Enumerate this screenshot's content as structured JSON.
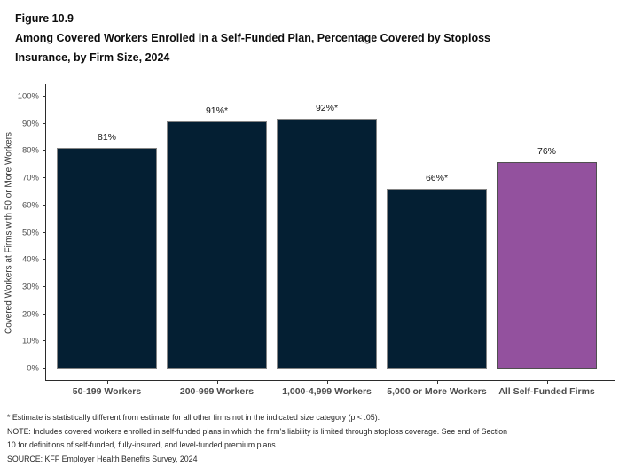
{
  "figure": {
    "label": "Figure 10.9",
    "title_lines": [
      "Among Covered Workers Enrolled in a Self-Funded Plan, Percentage Covered by Stoploss",
      "Insurance, by Firm Size, 2024"
    ]
  },
  "chart_data": {
    "type": "bar",
    "categories": [
      "50-199 Workers",
      "200-999 Workers",
      "1,000-4,999 Workers",
      "5,000 or More Workers",
      "All Self-Funded Firms"
    ],
    "values": [
      81,
      91,
      92,
      66,
      76
    ],
    "value_labels": [
      "81%",
      "91%*",
      "92%*",
      "66%*",
      "76%"
    ],
    "title": "Among Covered Workers Enrolled in a Self-Funded Plan, Percentage Covered by Stoploss Insurance, by Firm Size, 2024",
    "xlabel": "",
    "ylabel": "Covered Workers at Firms with 50 or More Workers",
    "ylim": [
      0,
      100
    ],
    "y_tick_labels": [
      "0%",
      "10%",
      "20%",
      "30%",
      "40%",
      "50%",
      "60%",
      "70%",
      "80%",
      "90%",
      "100%"
    ],
    "grid": false,
    "legend_position": "none",
    "bar_fill_colors": [
      "#041F33",
      "#041F33",
      "#041F33",
      "#041F33",
      "#93519E"
    ],
    "bar_border_colors": [
      "#848484",
      "#848484",
      "#848484",
      "#848484",
      "#4F4F4F"
    ]
  },
  "colors": {
    "bar_navy": "#041F33",
    "bar_purple": "#93519E",
    "axis_line": "#2B2B2B",
    "tick_label_gray": "#4D4D4D",
    "background": "#FFFFFF"
  },
  "footnotes": [
    "* Estimate is statistically different from estimate for all other firms not in the indicated size category (p < .05).",
    "NOTE: Includes covered workers enrolled in self-funded plans in which the firm's liability is limited through stoploss coverage. See end of Section",
    "10 for definitions of self-funded, fully-insured, and level-funded premium plans.",
    "SOURCE: KFF Employer Health Benefits Survey, 2024"
  ]
}
